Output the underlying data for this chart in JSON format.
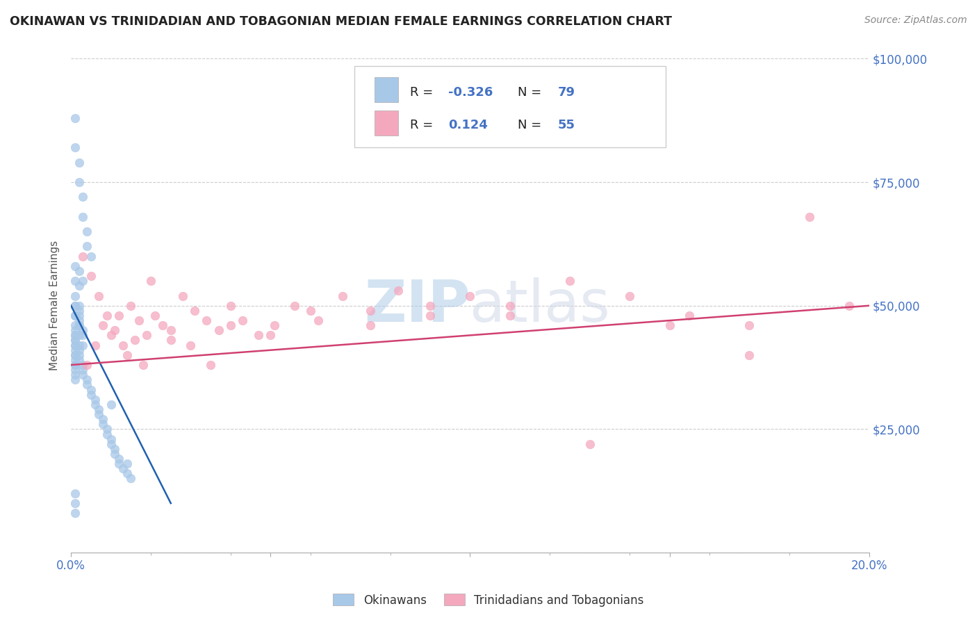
{
  "title": "OKINAWAN VS TRINIDADIAN AND TOBAGONIAN MEDIAN FEMALE EARNINGS CORRELATION CHART",
  "source_text": "Source: ZipAtlas.com",
  "ylabel": "Median Female Earnings",
  "xlim": [
    0.0,
    0.2
  ],
  "ylim": [
    0,
    100000
  ],
  "yticks": [
    0,
    25000,
    50000,
    75000,
    100000
  ],
  "ytick_labels": [
    "",
    "$25,000",
    "$50,000",
    "$75,000",
    "$100,000"
  ],
  "xticks": [
    0.0,
    0.05,
    0.1,
    0.15,
    0.2
  ],
  "xtick_labels": [
    "0.0%",
    "",
    "",
    "",
    "20.0%"
  ],
  "blue_color": "#a8c8e8",
  "pink_color": "#f4a8be",
  "blue_line_color": "#2060b0",
  "pink_line_color": "#d04070",
  "legend_R1": "-0.326",
  "legend_N1": "79",
  "legend_R2": "0.124",
  "legend_N2": "55",
  "label1": "Okinawans",
  "label2": "Trinidadians and Tobagonians",
  "watermark": "ZIPatlas",
  "title_color": "#222222",
  "axis_label_color": "#4472c4",
  "blue_scatter_x": [
    0.001,
    0.001,
    0.002,
    0.002,
    0.003,
    0.003,
    0.004,
    0.004,
    0.005,
    0.001,
    0.001,
    0.002,
    0.002,
    0.001,
    0.001,
    0.002,
    0.002,
    0.003,
    0.001,
    0.001,
    0.001,
    0.001,
    0.002,
    0.002,
    0.002,
    0.003,
    0.003,
    0.001,
    0.001,
    0.001,
    0.001,
    0.001,
    0.001,
    0.001,
    0.001,
    0.001,
    0.001,
    0.001,
    0.002,
    0.002,
    0.002,
    0.002,
    0.003,
    0.003,
    0.003,
    0.004,
    0.004,
    0.005,
    0.005,
    0.006,
    0.006,
    0.007,
    0.007,
    0.008,
    0.008,
    0.009,
    0.009,
    0.01,
    0.01,
    0.011,
    0.011,
    0.012,
    0.012,
    0.013,
    0.014,
    0.015,
    0.001,
    0.001,
    0.002,
    0.002,
    0.001,
    0.001,
    0.001,
    0.01,
    0.014,
    0.001,
    0.001,
    0.001,
    0.003
  ],
  "blue_scatter_y": [
    88000,
    82000,
    79000,
    75000,
    72000,
    68000,
    65000,
    62000,
    60000,
    58000,
    55000,
    57000,
    54000,
    52000,
    50000,
    49000,
    47000,
    45000,
    48000,
    46000,
    44000,
    43000,
    50000,
    48000,
    46000,
    44000,
    42000,
    42000,
    41000,
    40000,
    39000,
    38000,
    37000,
    36000,
    35000,
    45000,
    44000,
    43000,
    42000,
    41000,
    40000,
    39000,
    38000,
    37000,
    36000,
    35000,
    34000,
    33000,
    32000,
    31000,
    30000,
    29000,
    28000,
    27000,
    26000,
    25000,
    24000,
    23000,
    22000,
    21000,
    20000,
    19000,
    18000,
    17000,
    16000,
    15000,
    50000,
    48000,
    46000,
    44000,
    42000,
    40000,
    38000,
    30000,
    18000,
    12000,
    10000,
    8000,
    55000
  ],
  "pink_scatter_x": [
    0.003,
    0.005,
    0.007,
    0.009,
    0.011,
    0.013,
    0.015,
    0.017,
    0.019,
    0.021,
    0.023,
    0.025,
    0.028,
    0.031,
    0.034,
    0.037,
    0.04,
    0.043,
    0.047,
    0.051,
    0.056,
    0.062,
    0.068,
    0.075,
    0.082,
    0.09,
    0.1,
    0.11,
    0.125,
    0.14,
    0.155,
    0.17,
    0.185,
    0.195,
    0.004,
    0.006,
    0.008,
    0.01,
    0.012,
    0.014,
    0.016,
    0.018,
    0.02,
    0.025,
    0.03,
    0.035,
    0.04,
    0.05,
    0.06,
    0.075,
    0.09,
    0.11,
    0.13,
    0.15,
    0.17
  ],
  "pink_scatter_y": [
    60000,
    56000,
    52000,
    48000,
    45000,
    42000,
    50000,
    47000,
    44000,
    48000,
    46000,
    43000,
    52000,
    49000,
    47000,
    45000,
    50000,
    47000,
    44000,
    46000,
    50000,
    47000,
    52000,
    49000,
    53000,
    48000,
    52000,
    50000,
    55000,
    52000,
    48000,
    46000,
    68000,
    50000,
    38000,
    42000,
    46000,
    44000,
    48000,
    40000,
    43000,
    38000,
    55000,
    45000,
    42000,
    38000,
    46000,
    44000,
    49000,
    46000,
    50000,
    48000,
    22000,
    46000,
    40000
  ],
  "blue_trend_x": [
    0.0,
    0.025
  ],
  "blue_trend_y": [
    50000,
    10000
  ],
  "pink_trend_x": [
    0.0,
    0.2
  ],
  "pink_trend_y": [
    38000,
    50000
  ]
}
